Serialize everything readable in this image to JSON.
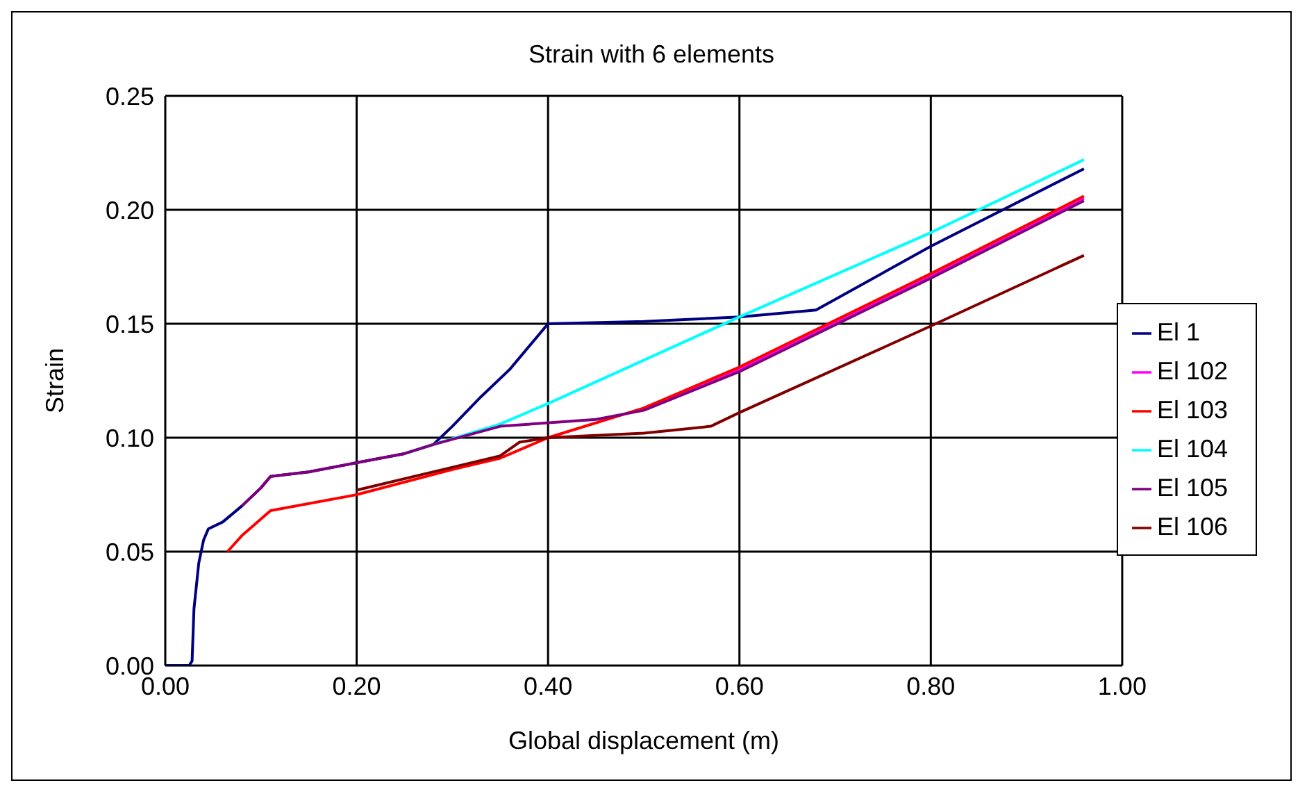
{
  "chart_data": {
    "type": "line",
    "title": "Strain with 6 elements",
    "xlabel": "Global displacement (m)",
    "ylabel": "Strain",
    "xlim": [
      0,
      1
    ],
    "xticks": [
      {
        "value": 0,
        "label": "0.00"
      },
      {
        "value": 0.2,
        "label": "0.20"
      },
      {
        "value": 0.4,
        "label": "0.40"
      },
      {
        "value": 0.6,
        "label": "0.60"
      },
      {
        "value": 0.8,
        "label": "0.80"
      },
      {
        "value": 1,
        "label": "1.00"
      }
    ],
    "ylim": [
      0,
      0.25
    ],
    "yticks": [
      {
        "value": 0,
        "label": "0.00"
      },
      {
        "value": 0.05,
        "label": "0.05"
      },
      {
        "value": 0.1,
        "label": "0.10"
      },
      {
        "value": 0.15,
        "label": "0.15"
      },
      {
        "value": 0.2,
        "label": "0.20"
      },
      {
        "value": 0.25,
        "label": "0.25"
      }
    ],
    "grid": true,
    "legend": "right",
    "marker": "none",
    "line_style": "solid",
    "series": [
      {
        "name": "El 1",
        "color": "#000080",
        "x": [
          0,
          0.025,
          0.028,
          0.03,
          0.035,
          0.04,
          0.045,
          0.06,
          0.08,
          0.1,
          0.11,
          0.15,
          0.2,
          0.25,
          0.28,
          0.3,
          0.33,
          0.36,
          0.4,
          0.5,
          0.6,
          0.68,
          0.8,
          0.96
        ],
        "values": [
          0,
          0,
          0.002,
          0.025,
          0.045,
          0.055,
          0.06,
          0.063,
          0.07,
          0.078,
          0.083,
          0.085,
          0.089,
          0.093,
          0.097,
          0.105,
          0.118,
          0.13,
          0.15,
          0.151,
          0.153,
          0.156,
          0.184,
          0.218
        ]
      },
      {
        "name": "El 102",
        "color": "#ff00ff",
        "x": [
          0.5,
          0.6,
          0.8,
          0.96
        ],
        "values": [
          0.113,
          0.13,
          0.171,
          0.205
        ]
      },
      {
        "name": "El 103",
        "color": "#ff0000",
        "x": [
          0.065,
          0.08,
          0.11,
          0.2,
          0.3,
          0.35,
          0.4,
          0.5,
          0.6,
          0.8,
          0.96
        ],
        "values": [
          0.05,
          0.057,
          0.068,
          0.075,
          0.086,
          0.091,
          0.1,
          0.113,
          0.131,
          0.172,
          0.206
        ]
      },
      {
        "name": "El 104",
        "color": "#00ffff",
        "x": [
          0.25,
          0.28,
          0.35,
          0.4,
          0.6,
          0.8,
          0.96
        ],
        "values": [
          0.093,
          0.097,
          0.106,
          0.115,
          0.153,
          0.19,
          0.222
        ]
      },
      {
        "name": "El 105",
        "color": "#800080",
        "x": [
          0.08,
          0.1,
          0.11,
          0.15,
          0.2,
          0.25,
          0.28,
          0.35,
          0.45,
          0.5,
          0.6,
          0.8,
          0.96
        ],
        "values": [
          0.07,
          0.078,
          0.083,
          0.085,
          0.089,
          0.093,
          0.097,
          0.105,
          0.108,
          0.112,
          0.129,
          0.17,
          0.204
        ]
      },
      {
        "name": "El 106",
        "color": "#800000",
        "x": [
          0.2,
          0.3,
          0.35,
          0.37,
          0.4,
          0.5,
          0.57,
          0.6,
          0.8,
          0.96
        ],
        "values": [
          0.077,
          0.087,
          0.092,
          0.098,
          0.1,
          0.102,
          0.105,
          0.111,
          0.149,
          0.18
        ]
      }
    ]
  }
}
